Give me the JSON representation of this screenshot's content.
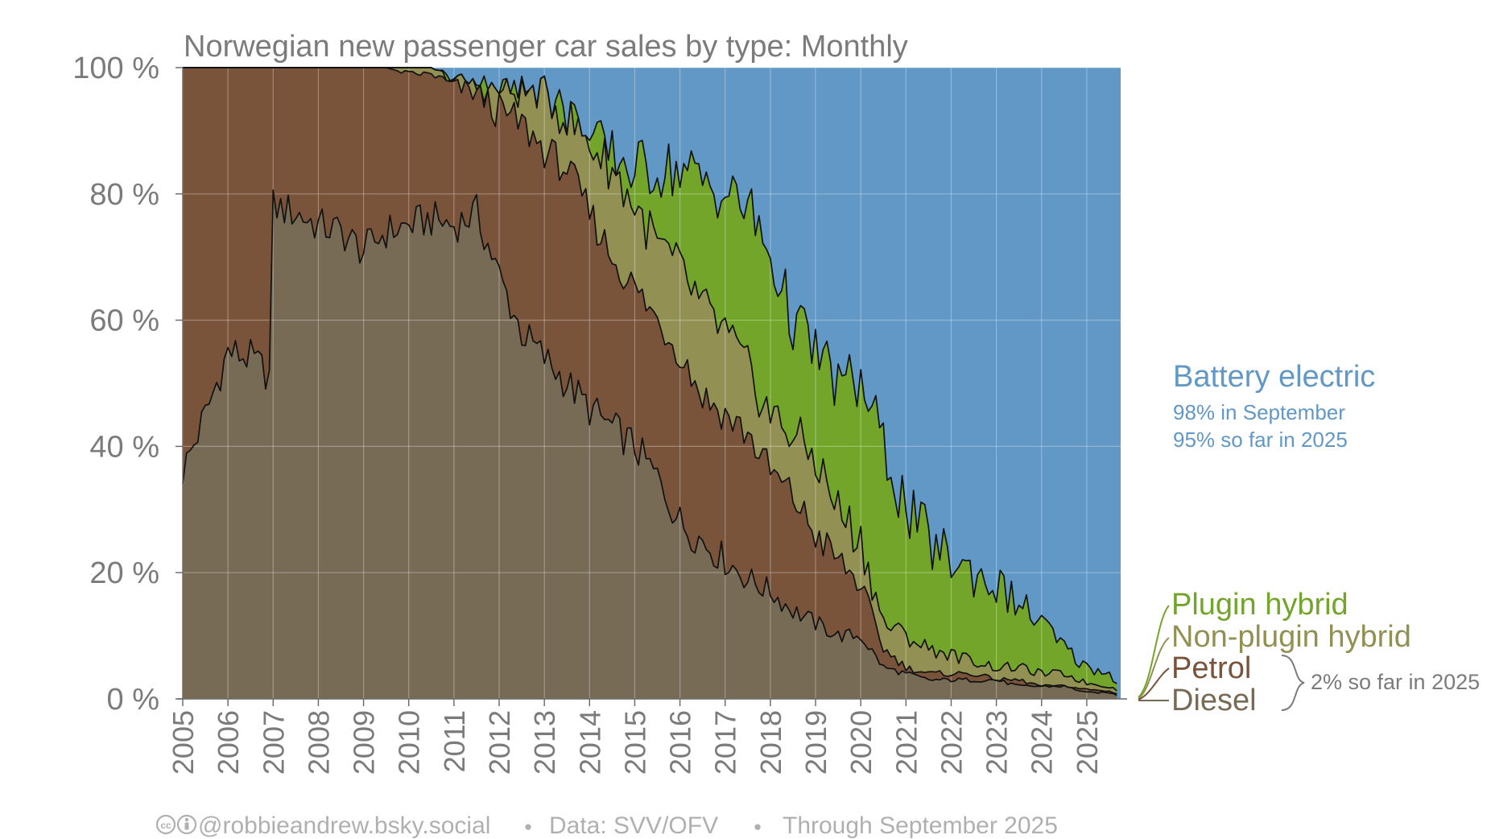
{
  "colors": {
    "battery": "#6198c6",
    "plugin": "#72a52a",
    "nonplugin": "#929153",
    "petrol": "#7a533b",
    "diesel": "#776b56",
    "title": "#7b7b7b",
    "axis_text": "#7b7b7b",
    "footer": "#b0b0b0",
    "grid": "#ffffff"
  },
  "chart_data": {
    "type": "area",
    "stacked": true,
    "title": "Norwegian new passenger car sales by type: Monthly",
    "ylim": [
      0,
      100
    ],
    "y_ticks": [
      "0 %",
      "20 %",
      "40 %",
      "60 %",
      "80 %",
      "100 %"
    ],
    "y_tick_values": [
      0,
      20,
      40,
      60,
      80,
      100
    ],
    "x_ticks": [
      "2005",
      "2006",
      "2007",
      "2008",
      "2009",
      "2010",
      "2011",
      "2012",
      "2013",
      "2014",
      "2015",
      "2016",
      "2017",
      "2018",
      "2019",
      "2020",
      "2021",
      "2022",
      "2023",
      "2024",
      "2025"
    ],
    "x_range": [
      "2005-01",
      "2025-09"
    ],
    "grid": true,
    "legend_position": "right",
    "series_order_bottom_to_top": [
      "Diesel",
      "Petrol",
      "Non-plugin hybrid",
      "Plugin hybrid",
      "Battery electric"
    ],
    "anchor_years": [
      2005.0,
      2005.5,
      2006.0,
      2006.5,
      2006.96,
      2007.0,
      2007.5,
      2008.0,
      2008.5,
      2009.0,
      2009.5,
      2010.0,
      2010.5,
      2011.0,
      2011.5,
      2012.0,
      2012.5,
      2013.0,
      2013.5,
      2014.0,
      2014.5,
      2015.0,
      2015.5,
      2016.0,
      2016.5,
      2017.0,
      2017.5,
      2018.0,
      2018.5,
      2019.0,
      2019.5,
      2020.0,
      2020.5,
      2021.0,
      2021.5,
      2022.0,
      2022.5,
      2023.0,
      2023.5,
      2024.0,
      2024.5,
      2025.0,
      2025.5,
      2025.71
    ],
    "cumulative_levels": {
      "diesel": [
        36,
        45,
        55,
        54,
        51,
        78,
        77,
        75,
        74,
        71,
        74,
        75,
        76,
        75,
        77,
        67,
        58,
        54,
        50,
        46,
        43,
        40,
        35,
        28,
        25,
        22,
        19,
        17,
        14,
        12,
        10,
        10,
        5,
        4,
        3,
        3,
        3,
        3,
        2,
        2,
        2,
        1,
        1,
        0.5
      ],
      "petrol": [
        100,
        100,
        100,
        100,
        100,
        100,
        100,
        100,
        100,
        100,
        100,
        99,
        99,
        97,
        96,
        93,
        91,
        87,
        84,
        77,
        70,
        65,
        60,
        55,
        48,
        45,
        42,
        36,
        32,
        26,
        22,
        18,
        8,
        5,
        4,
        4,
        4,
        3,
        3,
        2,
        2,
        1.5,
        1.2,
        0.8
      ],
      "nonplugin": [
        100,
        100,
        100,
        100,
        100,
        100,
        100,
        100,
        100,
        100,
        100,
        100,
        100,
        98,
        97,
        96,
        96,
        96,
        92,
        88,
        84,
        78,
        72,
        68,
        62,
        58,
        52,
        45,
        42,
        38,
        30,
        25,
        12,
        10,
        8,
        7,
        6,
        5,
        5,
        4,
        4,
        2.5,
        2,
        1.2
      ],
      "plugin": [
        100,
        100,
        100,
        100,
        100,
        100,
        100,
        100,
        100,
        100,
        100,
        100,
        100,
        98,
        97,
        96,
        96,
        96,
        92,
        88,
        86,
        84,
        84,
        84,
        82,
        80,
        78,
        70,
        60,
        55,
        50,
        50,
        40,
        30,
        25,
        22,
        20,
        18,
        15,
        12,
        8,
        5,
        4,
        2.2
      ],
      "battery": [
        100,
        100,
        100,
        100,
        100,
        100,
        100,
        100,
        100,
        100,
        100,
        100,
        100,
        100,
        100,
        100,
        100,
        100,
        100,
        100,
        100,
        100,
        100,
        100,
        100,
        100,
        100,
        100,
        100,
        100,
        100,
        100,
        100,
        100,
        100,
        100,
        100,
        100,
        100,
        100,
        100,
        100,
        100,
        100
      ]
    }
  },
  "legend": {
    "battery": "Battery electric",
    "battery_note1": "98% in September",
    "battery_note2": "95% so far in 2025",
    "plugin": "Plugin hybrid",
    "nonplugin": "Non-plugin hybrid",
    "petrol": "Petrol",
    "diesel": "Diesel",
    "fossil_note": "2% so far in 2025"
  },
  "footer": {
    "cc_icon": "cc-icon",
    "by_icon": "by-icon",
    "author": "@robbieandrew.bsky.social",
    "separator": "●",
    "source": "Data: SVV/OFV",
    "through": "Through September 2025"
  }
}
